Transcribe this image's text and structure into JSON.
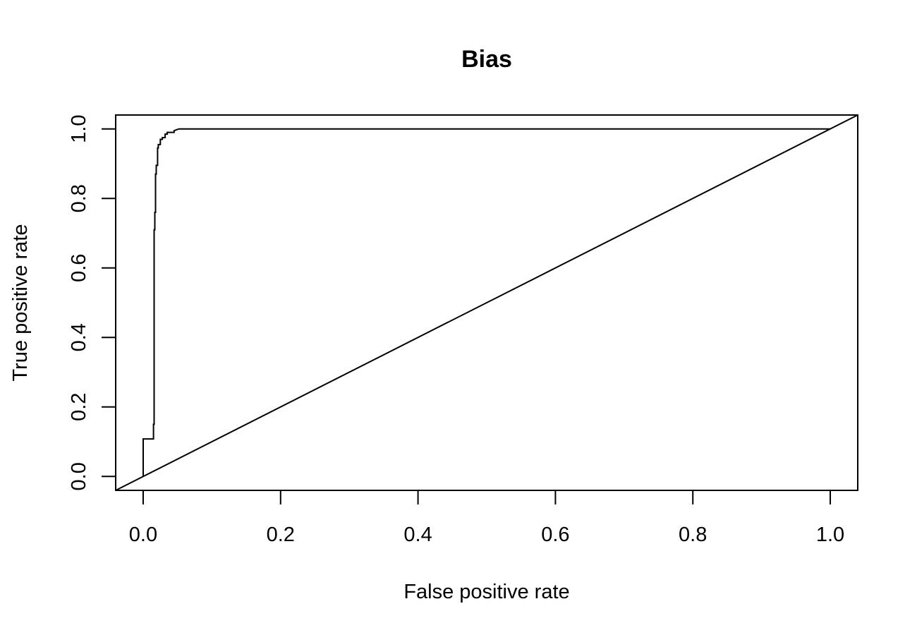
{
  "chart_data": {
    "type": "line",
    "title": "Bias",
    "xlabel": "False positive rate",
    "ylabel": "True positive rate",
    "xlim": [
      -0.04,
      1.04
    ],
    "ylim": [
      -0.04,
      1.04
    ],
    "xticks": [
      0.0,
      0.2,
      0.4,
      0.6,
      0.8,
      1.0
    ],
    "xtick_labels": [
      "0.0",
      "0.2",
      "0.4",
      "0.6",
      "0.8",
      "1.0"
    ],
    "yticks": [
      0.0,
      0.2,
      0.4,
      0.6,
      0.8,
      1.0
    ],
    "ytick_labels": [
      "0.0",
      "0.2",
      "0.4",
      "0.6",
      "0.8",
      "1.0"
    ],
    "grid": false,
    "legend": "none",
    "series": [
      {
        "style": "step",
        "x": [
          0.0,
          0.0,
          0.015,
          0.015,
          0.016,
          0.016,
          0.017,
          0.017,
          0.018,
          0.018,
          0.019,
          0.019,
          0.021,
          0.021,
          0.022,
          0.022,
          0.025,
          0.025,
          0.028,
          0.028,
          0.032,
          0.032,
          0.035,
          0.035,
          0.045,
          0.045,
          0.052,
          1.0
        ],
        "y": [
          0.0,
          0.108,
          0.108,
          0.15,
          0.15,
          0.71,
          0.71,
          0.76,
          0.76,
          0.87,
          0.87,
          0.895,
          0.895,
          0.945,
          0.945,
          0.955,
          0.955,
          0.97,
          0.97,
          0.975,
          0.975,
          0.985,
          0.985,
          0.99,
          0.99,
          0.995,
          1.0,
          1.0
        ]
      },
      {
        "style": "reference-diagonal",
        "x": [
          -0.04,
          1.04
        ],
        "y": [
          -0.04,
          1.04
        ]
      }
    ]
  }
}
